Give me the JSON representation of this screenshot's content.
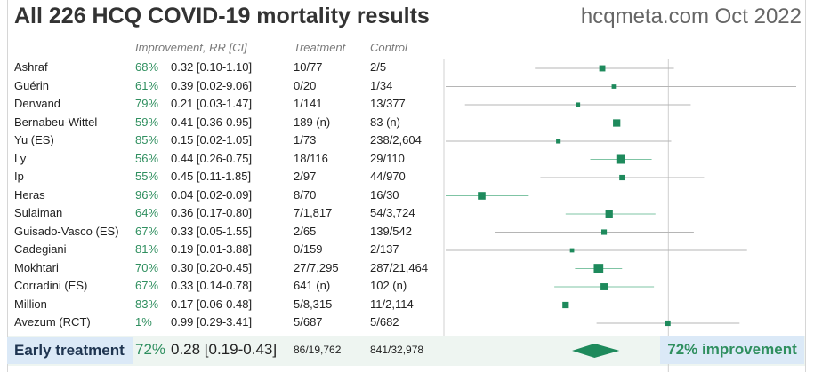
{
  "header": {
    "title": "All 226 HCQ COVID-19 mortality results",
    "site": "hcqmeta.com Oct 2022",
    "col_improvement": "Improvement, RR [CI]",
    "col_treatment": "Treatment",
    "col_control": "Control"
  },
  "colors": {
    "accent": "#2f8f5f",
    "marker": "#1e8a5c",
    "summary_fill": "#dbe9f7"
  },
  "chart_data": {
    "type": "forest",
    "x_scale": "log",
    "x_reference": 1,
    "xlim": [
      0.0215,
      9.2
    ],
    "studies": [
      {
        "name": "Ashraf",
        "improvement": "68%",
        "rr_text": "0.32 [0.10-1.10]",
        "treatment": "10/77",
        "control": "2/5",
        "rr": 0.32,
        "lo": 0.1,
        "hi": 1.1,
        "weight": 0.55
      },
      {
        "name": "Guérin",
        "improvement": "61%",
        "rr_text": "0.39 [0.02-9.06]",
        "treatment": "0/20",
        "control": "1/34",
        "rr": 0.39,
        "lo": 0.02,
        "hi": 9.06,
        "weight": 0.25
      },
      {
        "name": "Derwand",
        "improvement": "79%",
        "rr_text": "0.21 [0.03-1.47]",
        "treatment": "1/141",
        "control": "13/377",
        "rr": 0.21,
        "lo": 0.03,
        "hi": 1.47,
        "weight": 0.3
      },
      {
        "name": "Bernabeu-Wittel",
        "improvement": "59%",
        "rr_text": "0.41 [0.36-0.95]",
        "treatment": "189 (n)",
        "control": "83 (n)",
        "rr": 0.41,
        "lo": 0.36,
        "hi": 0.95,
        "weight": 0.75
      },
      {
        "name": "Yu (ES)",
        "improvement": "85%",
        "rr_text": "0.15 [0.02-1.05]",
        "treatment": "1/73",
        "control": "238/2,604",
        "rr": 0.15,
        "lo": 0.02,
        "hi": 1.05,
        "weight": 0.3
      },
      {
        "name": "Ly",
        "improvement": "56%",
        "rr_text": "0.44 [0.26-0.75]",
        "treatment": "18/116",
        "control": "29/110",
        "rr": 0.44,
        "lo": 0.26,
        "hi": 0.75,
        "weight": 1.0
      },
      {
        "name": "Ip",
        "improvement": "55%",
        "rr_text": "0.45 [0.11-1.85]",
        "treatment": "2/97",
        "control": "44/970",
        "rr": 0.45,
        "lo": 0.11,
        "hi": 1.85,
        "weight": 0.45
      },
      {
        "name": "Heras",
        "improvement": "96%",
        "rr_text": "0.04 [0.02-0.09]",
        "treatment": "8/70",
        "control": "16/30",
        "rr": 0.04,
        "lo": 0.02,
        "hi": 0.09,
        "weight": 0.8
      },
      {
        "name": "Sulaiman",
        "improvement": "64%",
        "rr_text": "0.36 [0.17-0.80]",
        "treatment": "7/1,817",
        "control": "54/3,724",
        "rr": 0.36,
        "lo": 0.17,
        "hi": 0.8,
        "weight": 0.75
      },
      {
        "name": "Guisado-Vasco (ES)",
        "improvement": "67%",
        "rr_text": "0.33 [0.05-1.55]",
        "treatment": "2/65",
        "control": "139/542",
        "rr": 0.33,
        "lo": 0.05,
        "hi": 1.55,
        "weight": 0.45
      },
      {
        "name": "Cadegiani",
        "improvement": "81%",
        "rr_text": "0.19 [0.01-3.88]",
        "treatment": "0/159",
        "control": "2/137",
        "rr": 0.19,
        "lo": 0.01,
        "hi": 3.88,
        "weight": 0.25
      },
      {
        "name": "Mokhtari",
        "improvement": "70%",
        "rr_text": "0.30 [0.20-0.45]",
        "treatment": "27/7,295",
        "control": "287/21,464",
        "rr": 0.3,
        "lo": 0.2,
        "hi": 0.45,
        "weight": 1.1
      },
      {
        "name": "Corradini (ES)",
        "improvement": "67%",
        "rr_text": "0.33 [0.14-0.78]",
        "treatment": "641 (n)",
        "control": "102 (n)",
        "rr": 0.33,
        "lo": 0.14,
        "hi": 0.78,
        "weight": 0.7
      },
      {
        "name": "Million",
        "improvement": "83%",
        "rr_text": "0.17 [0.06-0.48]",
        "treatment": "5/8,315",
        "control": "11/2,114",
        "rr": 0.17,
        "lo": 0.06,
        "hi": 0.48,
        "weight": 0.6
      },
      {
        "name": "Avezum (RCT)",
        "improvement": "1%",
        "rr_text": "0.99 [0.29-3.41]",
        "treatment": "5/687",
        "control": "5/682",
        "rr": 0.99,
        "lo": 0.29,
        "hi": 3.41,
        "weight": 0.45
      }
    ],
    "summary": {
      "label": "Early treatment",
      "improvement": "72%",
      "rr_text": "0.28 [0.19-0.43]",
      "treatment": "86/19,762",
      "control": "841/32,978",
      "improvement_text": "72% improvement",
      "rr": 0.28,
      "lo": 0.19,
      "hi": 0.43
    }
  }
}
